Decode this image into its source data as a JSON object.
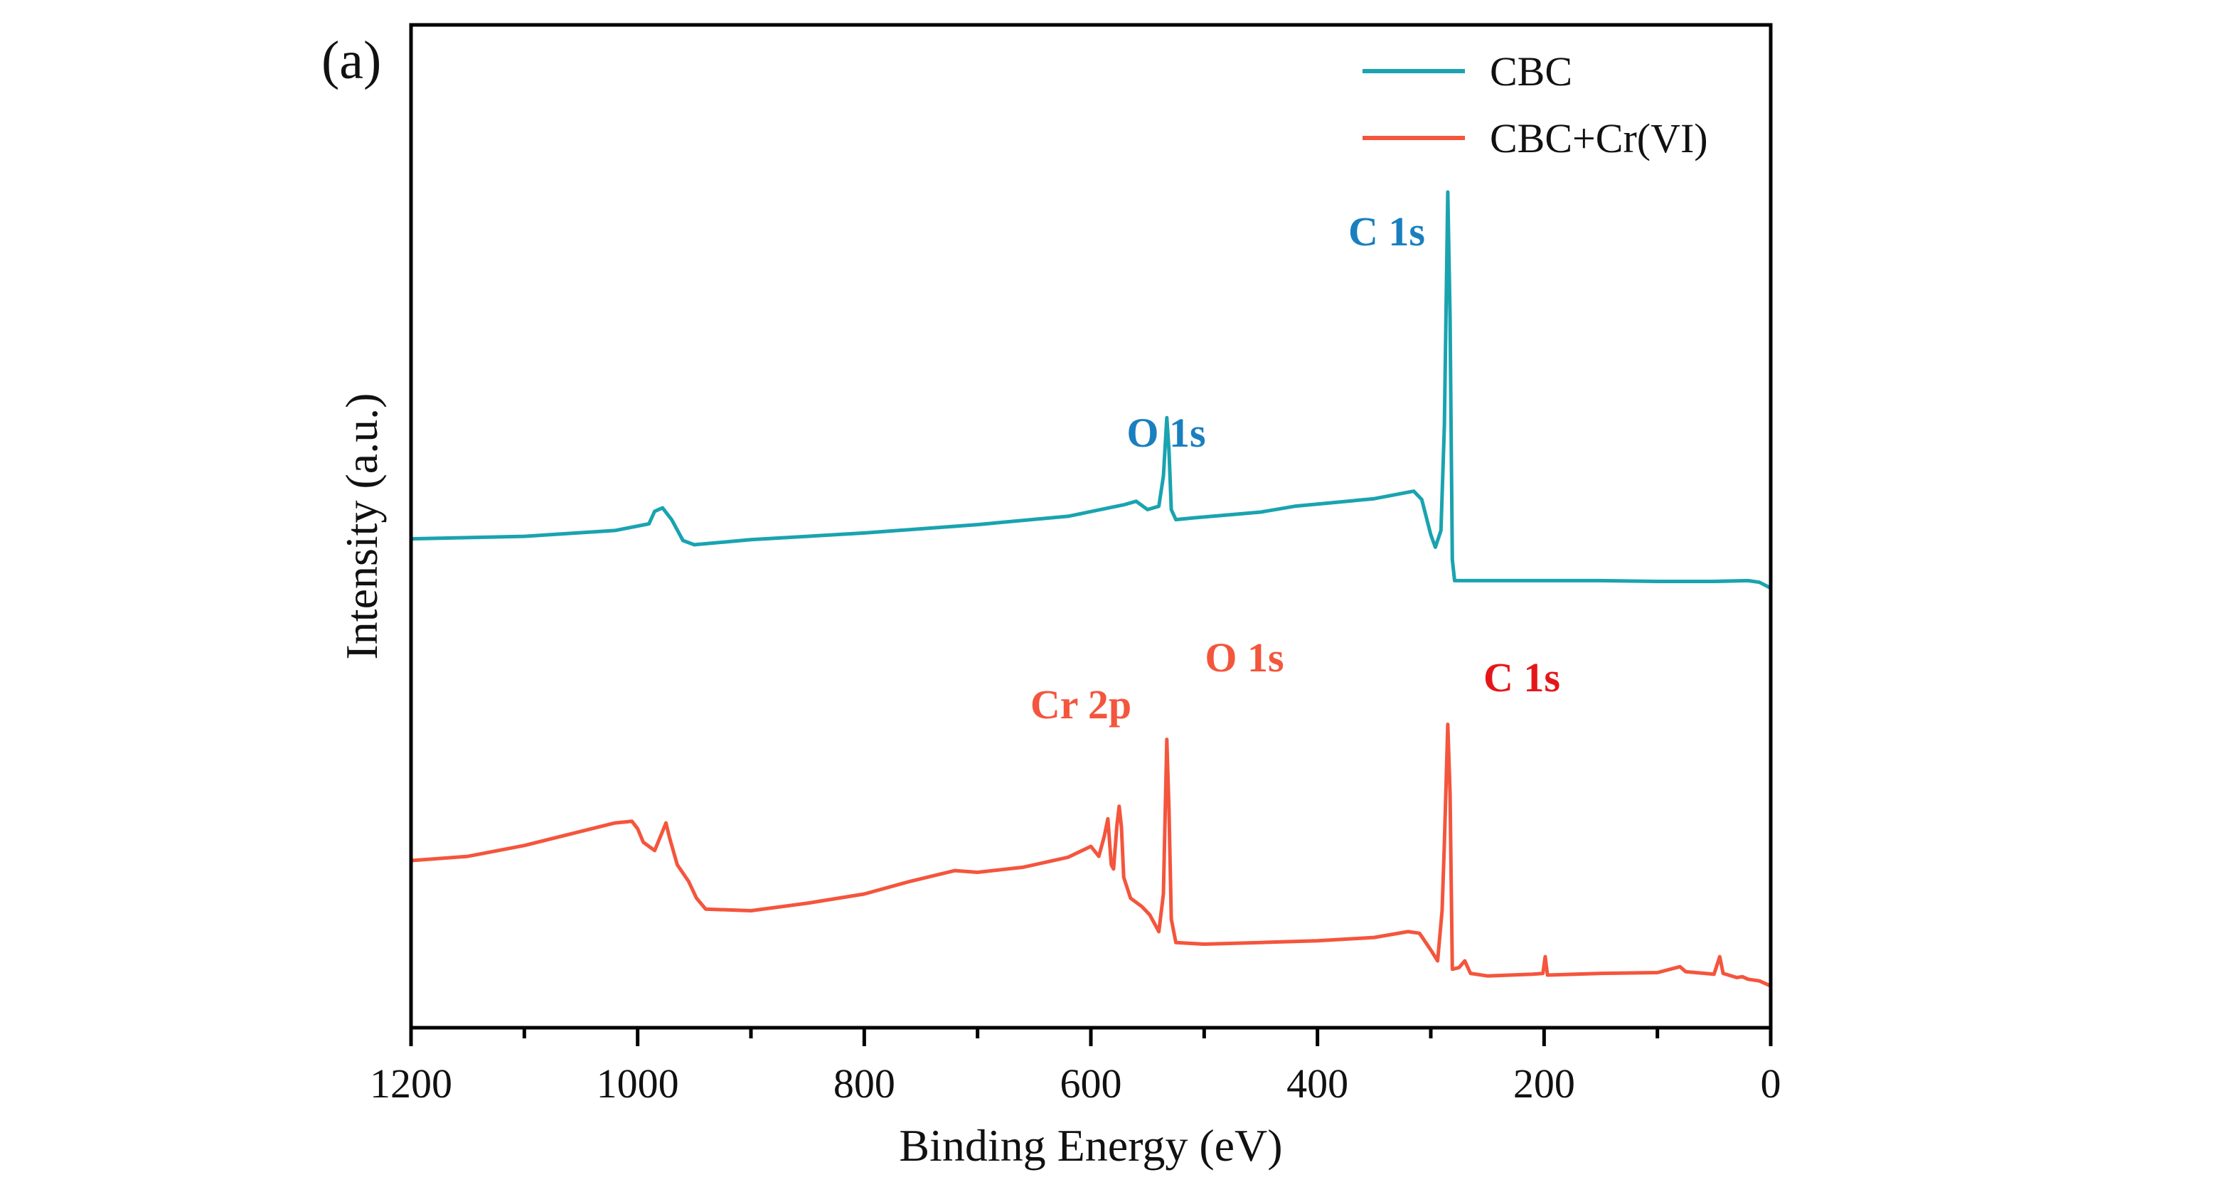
{
  "chart_data": {
    "type": "line",
    "panel_label": "(a)",
    "xlabel": "Binding Energy (eV)",
    "ylabel": "Intensity (a.u.)",
    "xlim": [
      1200,
      0
    ],
    "x_reversed": true,
    "xticks": [
      1200,
      1000,
      800,
      600,
      400,
      200,
      0
    ],
    "yticks_shown": false,
    "grid": false,
    "legend": {
      "position": "top-right"
    },
    "colors": {
      "CBC": "#1aa3b0",
      "CBC+Cr(VI)": "#f4553d"
    },
    "series": [
      {
        "name": "CBC",
        "color": "#1aa3b0",
        "points": [
          [
            1200,
            58.5
          ],
          [
            1100,
            58.8
          ],
          [
            1020,
            59.5
          ],
          [
            990,
            60.3
          ],
          [
            985,
            61.8
          ],
          [
            978,
            62.2
          ],
          [
            970,
            60.8
          ],
          [
            960,
            58.3
          ],
          [
            950,
            57.8
          ],
          [
            900,
            58.4
          ],
          [
            800,
            59.2
          ],
          [
            700,
            60.2
          ],
          [
            620,
            61.2
          ],
          [
            570,
            62.6
          ],
          [
            560,
            63.0
          ],
          [
            550,
            62.0
          ],
          [
            540,
            62.4
          ],
          [
            536,
            66.0
          ],
          [
            533,
            73.0
          ],
          [
            531,
            69.0
          ],
          [
            529,
            62.0
          ],
          [
            525,
            60.8
          ],
          [
            510,
            61.0
          ],
          [
            450,
            61.7
          ],
          [
            420,
            62.4
          ],
          [
            350,
            63.3
          ],
          [
            315,
            64.2
          ],
          [
            308,
            63.2
          ],
          [
            300,
            59.0
          ],
          [
            296,
            57.5
          ],
          [
            291,
            59.5
          ],
          [
            288,
            72.0
          ],
          [
            285,
            100.0
          ],
          [
            283,
            85.0
          ],
          [
            281,
            56.0
          ],
          [
            279,
            53.5
          ],
          [
            250,
            53.5
          ],
          [
            200,
            53.5
          ],
          [
            150,
            53.5
          ],
          [
            100,
            53.4
          ],
          [
            50,
            53.4
          ],
          [
            20,
            53.5
          ],
          [
            10,
            53.3
          ],
          [
            0,
            52.6
          ]
        ],
        "annotations": [
          {
            "text": "C 1s",
            "x": 285,
            "color": "#1a7fbf"
          },
          {
            "text": "O 1s",
            "x": 533,
            "color": "#1a7fbf"
          }
        ]
      },
      {
        "name": "CBC+Cr(VI)",
        "color": "#f4553d",
        "points": [
          [
            1200,
            20.0
          ],
          [
            1150,
            20.5
          ],
          [
            1100,
            21.8
          ],
          [
            1050,
            23.5
          ],
          [
            1020,
            24.5
          ],
          [
            1005,
            24.7
          ],
          [
            1000,
            23.8
          ],
          [
            995,
            22.2
          ],
          [
            985,
            21.2
          ],
          [
            978,
            23.5
          ],
          [
            975,
            24.5
          ],
          [
            972,
            22.8
          ],
          [
            965,
            19.5
          ],
          [
            955,
            17.5
          ],
          [
            948,
            15.5
          ],
          [
            940,
            14.2
          ],
          [
            900,
            14.0
          ],
          [
            850,
            14.9
          ],
          [
            800,
            16.0
          ],
          [
            760,
            17.5
          ],
          [
            720,
            18.8
          ],
          [
            700,
            18.6
          ],
          [
            660,
            19.2
          ],
          [
            620,
            20.4
          ],
          [
            600,
            21.7
          ],
          [
            593,
            20.5
          ],
          [
            588,
            23.0
          ],
          [
            585,
            25.0
          ],
          [
            582,
            19.5
          ],
          [
            580,
            19.0
          ],
          [
            577,
            24.2
          ],
          [
            575,
            26.5
          ],
          [
            573,
            24.0
          ],
          [
            571,
            18.0
          ],
          [
            565,
            15.5
          ],
          [
            555,
            14.5
          ],
          [
            548,
            13.5
          ],
          [
            540,
            11.5
          ],
          [
            536,
            16.0
          ],
          [
            533,
            34.5
          ],
          [
            531,
            26.0
          ],
          [
            529,
            13.0
          ],
          [
            525,
            10.2
          ],
          [
            500,
            10.0
          ],
          [
            450,
            10.2
          ],
          [
            400,
            10.4
          ],
          [
            350,
            10.8
          ],
          [
            320,
            11.5
          ],
          [
            310,
            11.3
          ],
          [
            300,
            9.3
          ],
          [
            294,
            8.0
          ],
          [
            290,
            14.0
          ],
          [
            288,
            22.0
          ],
          [
            285,
            36.3
          ],
          [
            283,
            28.0
          ],
          [
            281,
            7.0
          ],
          [
            275,
            7.2
          ],
          [
            270,
            8.0
          ],
          [
            265,
            6.5
          ],
          [
            250,
            6.2
          ],
          [
            210,
            6.4
          ],
          [
            201,
            6.5
          ],
          [
            199,
            8.5
          ],
          [
            197,
            6.3
          ],
          [
            150,
            6.5
          ],
          [
            100,
            6.6
          ],
          [
            80,
            7.3
          ],
          [
            75,
            6.7
          ],
          [
            50,
            6.4
          ],
          [
            45,
            8.5
          ],
          [
            42,
            6.5
          ],
          [
            30,
            6.0
          ],
          [
            25,
            6.1
          ],
          [
            20,
            5.8
          ],
          [
            10,
            5.6
          ],
          [
            0,
            5.0
          ]
        ],
        "annotations": [
          {
            "text": "C 1s",
            "x": 285,
            "color": "#e5161a"
          },
          {
            "text": "O 1s",
            "x": 533,
            "color": "#f4553d"
          },
          {
            "text": "Cr 2p",
            "x": 580,
            "color": "#f4553d"
          }
        ]
      }
    ]
  }
}
